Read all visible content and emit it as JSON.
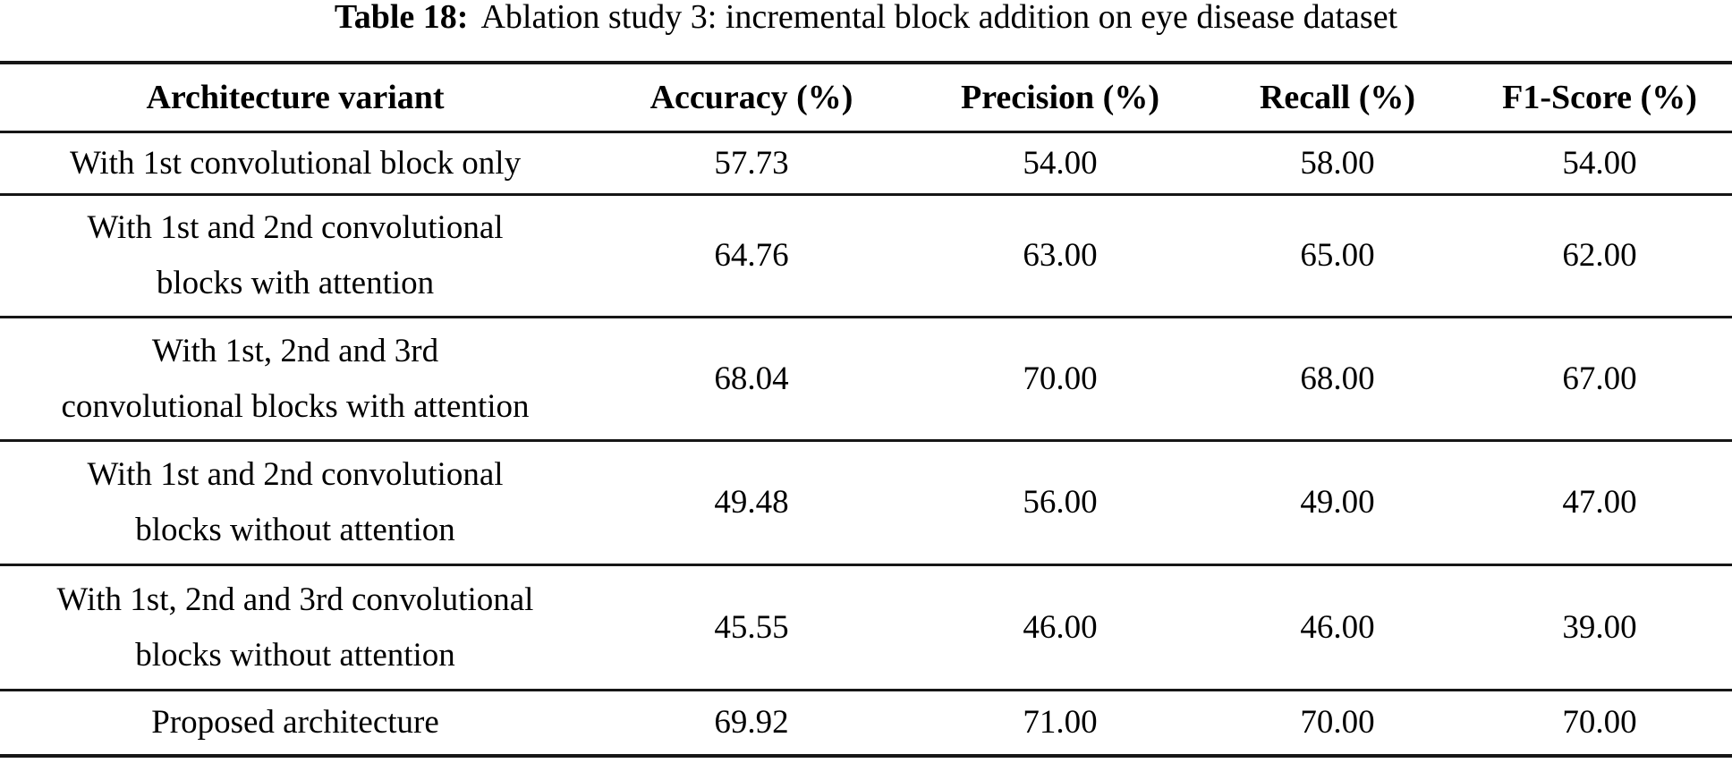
{
  "caption": {
    "label": "Table 18:",
    "text": "Ablation study 3: incremental block addition on eye disease dataset"
  },
  "table": {
    "columns": [
      "Architecture variant",
      "Accuracy (%)",
      "Precision (%)",
      "Recall (%)",
      "F1-Score (%)"
    ],
    "rows": [
      {
        "line1": "With 1st convolutional block only",
        "accuracy": "57.73",
        "precision": "54.00",
        "recall": "58.00",
        "f1": "54.00"
      },
      {
        "line1": "With 1st and 2nd convolutional",
        "line2": "blocks with attention",
        "accuracy": "64.76",
        "precision": "63.00",
        "recall": "65.00",
        "f1": "62.00"
      },
      {
        "line1": "With 1st, 2nd and 3rd",
        "line2": "convolutional blocks with attention",
        "accuracy": "68.04",
        "precision": "70.00",
        "recall": "68.00",
        "f1": "67.00"
      },
      {
        "line1": "With 1st and 2nd convolutional",
        "line2": "blocks without attention",
        "accuracy": "49.48",
        "precision": "56.00",
        "recall": "49.00",
        "f1": "47.00"
      },
      {
        "line1": "With 1st, 2nd and 3rd convolutional",
        "line2": "blocks without attention",
        "accuracy": "45.55",
        "precision": "46.00",
        "recall": "46.00",
        "f1": "39.00"
      },
      {
        "line1": "Proposed architecture",
        "accuracy": "69.92",
        "precision": "71.00",
        "recall": "70.00",
        "f1": "70.00"
      }
    ]
  }
}
